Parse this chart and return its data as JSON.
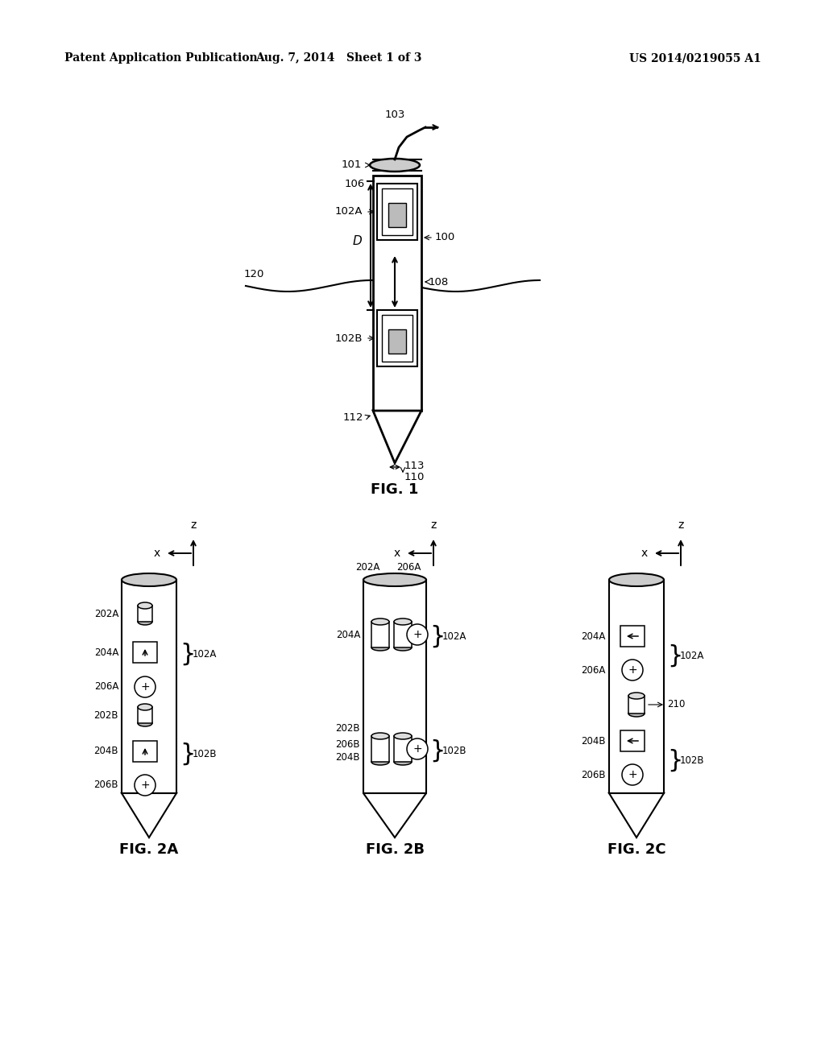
{
  "bg_color": "#ffffff",
  "header_left": "Patent Application Publication",
  "header_mid": "Aug. 7, 2014   Sheet 1 of 3",
  "header_right": "US 2014/0219055 A1",
  "fig1_caption": "FIG. 1",
  "fig2a_caption": "FIG. 2A",
  "fig2b_caption": "FIG. 2B",
  "fig2c_caption": "FIG. 2C"
}
